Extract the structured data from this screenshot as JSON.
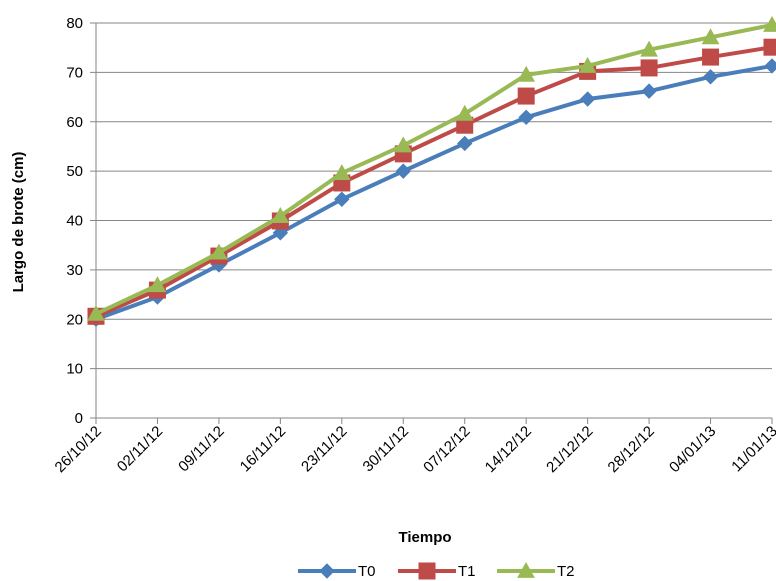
{
  "chart_data": {
    "type": "line",
    "title": "",
    "xlabel": "Tiempo",
    "ylabel": "Largo de brote (cm)",
    "ylim": [
      0,
      80
    ],
    "yticks": [
      0,
      10,
      20,
      30,
      40,
      50,
      60,
      70,
      80
    ],
    "grid": "horizontal",
    "legend_position": "bottom",
    "categories": [
      "26/10/12",
      "02/11/12",
      "09/11/12",
      "16/11/12",
      "23/11/12",
      "30/11/12",
      "07/12/12",
      "14/12/12",
      "21/12/12",
      "28/12/12",
      "04/01/13",
      "11/01/13"
    ],
    "series": [
      {
        "name": "T0",
        "color": "#4A7EBB",
        "marker": "diamond",
        "values": [
          20.0,
          24.5,
          31.0,
          37.5,
          44.3,
          50.0,
          55.6,
          60.9,
          64.6,
          66.2,
          69.1,
          71.3
        ]
      },
      {
        "name": "T1",
        "color": "#BE4B48",
        "marker": "square",
        "values": [
          20.6,
          25.9,
          32.8,
          39.9,
          47.6,
          53.5,
          59.3,
          65.2,
          70.2,
          70.9,
          73.1,
          75.1
        ]
      },
      {
        "name": "T2",
        "color": "#98B954",
        "marker": "triangle",
        "values": [
          21.1,
          26.9,
          33.5,
          40.9,
          49.6,
          55.2,
          61.6,
          69.5,
          71.3,
          74.6,
          77.1,
          79.6
        ]
      }
    ]
  }
}
